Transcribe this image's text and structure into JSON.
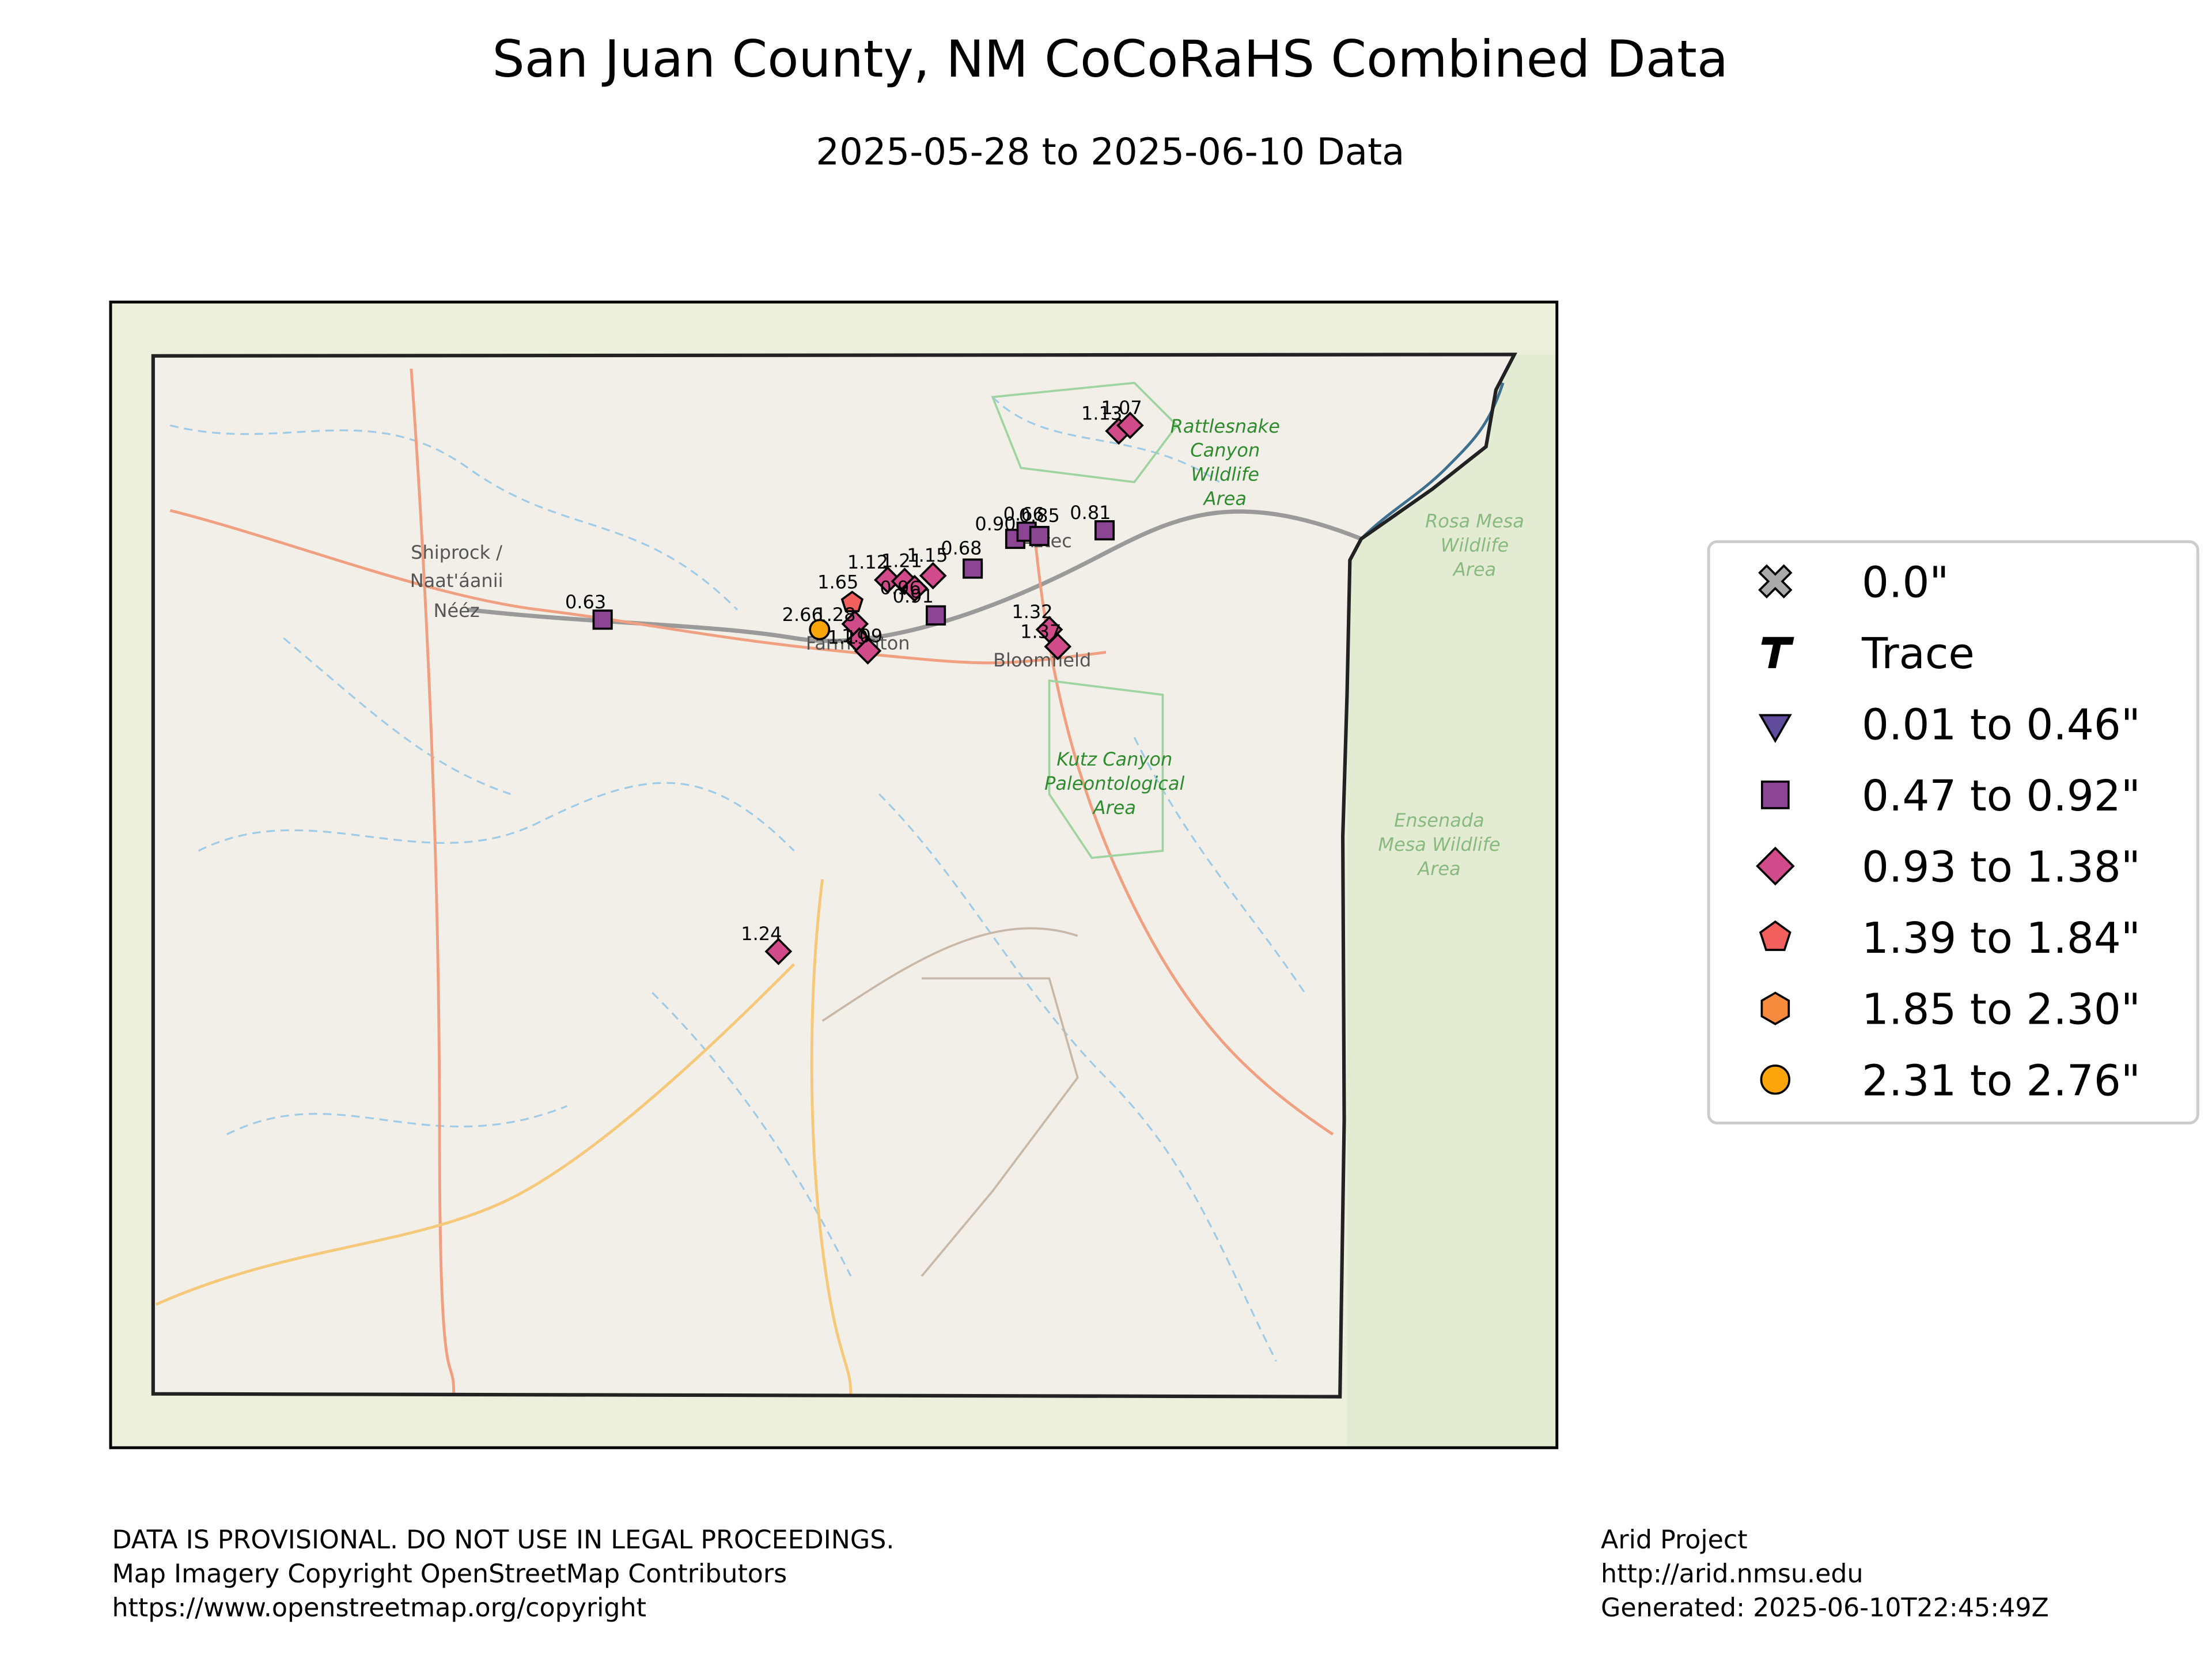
{
  "title": "San Juan County, NM CoCoRaHS Combined Data",
  "subtitle": "2025-05-28 to 2025-06-10 Data",
  "legend": [
    {
      "label": "0.0\"",
      "shape": "x",
      "color": "#aaaaaa",
      "range": [
        0,
        0
      ]
    },
    {
      "label": "Trace",
      "shape": "t",
      "color": "#000000"
    },
    {
      "label": "0.01 to 0.46\"",
      "shape": "triangle",
      "color": "#5e4b9c",
      "range": [
        0.01,
        0.46
      ]
    },
    {
      "label": "0.47 to 0.92\"",
      "shape": "square",
      "color": "#8b4592",
      "range": [
        0.47,
        0.92
      ]
    },
    {
      "label": "0.93 to 1.38\"",
      "shape": "diamond",
      "color": "#d14b8a",
      "range": [
        0.93,
        1.38
      ]
    },
    {
      "label": "1.39 to 1.84\"",
      "shape": "pentagon",
      "color": "#f1605d",
      "range": [
        1.39,
        1.84
      ]
    },
    {
      "label": "1.85 to 2.30\"",
      "shape": "hexagon",
      "color": "#f68b3e",
      "range": [
        1.85,
        2.3
      ]
    },
    {
      "label": "2.31 to 2.76\"",
      "shape": "circle",
      "color": "#fca50a",
      "range": [
        2.31,
        2.76
      ]
    }
  ],
  "stations": {
    "values": [
      0.63,
      2.66,
      1.65,
      1.28,
      1.19,
      1.09,
      1.12,
      1.21,
      0.96,
      1.15,
      0.68,
      0.91,
      0.9,
      0.66,
      0.85,
      0.81,
      1.13,
      1.07,
      1.32,
      1.37,
      1.24
    ],
    "value_labels": [
      "0.63",
      "2.66",
      "1.65",
      "1.28",
      "1.19",
      "1.09",
      "1.12",
      "1.21",
      "0.96",
      "1.15",
      "0.68",
      "0.91",
      "0.90",
      "0.66",
      "0.85",
      "0.81",
      "1.13",
      "1.07",
      "1.32",
      "1.37",
      "1.24"
    ]
  },
  "places": [
    "Shiprock /",
    "Naat'áanii",
    "Nééz",
    "Farmington",
    "Bloomfield",
    "Aztec"
  ],
  "areas": [
    [
      "Rattlesnake",
      "Canyon",
      "Wildlife",
      "Area"
    ],
    [
      "Kutz Canyon",
      "Paleontological",
      "Area"
    ],
    [
      "Rosa Mesa",
      "Wildlife",
      "Area"
    ],
    [
      "Ensenada",
      "Mesa Wildlife",
      "Area"
    ]
  ],
  "footer_left": [
    "DATA IS PROVISIONAL. DO NOT USE IN LEGAL PROCEEDINGS.",
    "Map Imagery Copyright OpenStreetMap Contributors",
    "https://www.openstreetmap.org/copyright"
  ],
  "footer_right": [
    "Arid Project",
    "http://arid.nmsu.edu",
    "Generated: 2025-06-10T22:45:49Z"
  ]
}
